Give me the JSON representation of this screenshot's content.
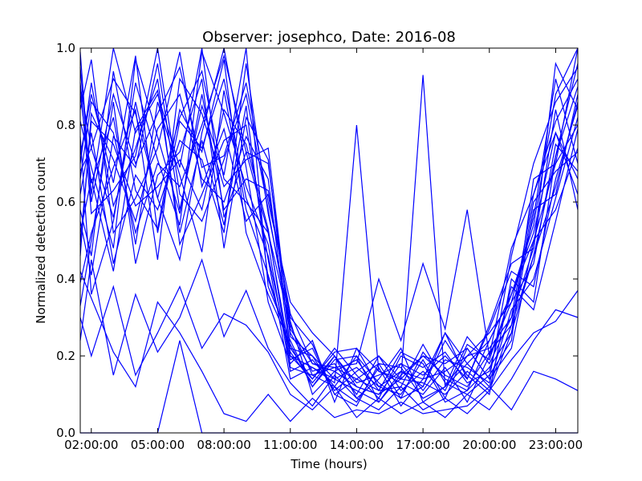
{
  "chart_data": {
    "type": "line",
    "title": "Observer: josephco, Date: 2016-08",
    "xlabel": "Time (hours)",
    "ylabel": "Normalized detection count",
    "x_ticks": [
      "02:00:00",
      "05:00:00",
      "08:00:00",
      "11:00:00",
      "14:00:00",
      "17:00:00",
      "20:00:00",
      "23:00:00"
    ],
    "x_tick_hours": [
      2,
      5,
      8,
      11,
      14,
      17,
      20,
      23
    ],
    "y_ticks": [
      "0.0",
      "0.2",
      "0.4",
      "0.6",
      "0.8",
      "1.0"
    ],
    "y_tick_values": [
      0.0,
      0.2,
      0.4,
      0.6,
      0.8,
      1.0
    ],
    "xlim": [
      1.5,
      24
    ],
    "ylim": [
      0.0,
      1.0
    ],
    "grid": false,
    "line_color": "#0000ff",
    "x_hours": [
      1.5,
      2,
      3,
      4,
      5,
      6,
      7,
      8,
      9,
      10,
      11,
      12,
      13,
      14,
      15,
      16,
      17,
      18,
      19,
      20,
      21,
      22,
      23,
      24
    ],
    "series": [
      {
        "values": [
          0.95,
          0.62,
          1.0,
          0.78,
          0.88,
          0.69,
          1.0,
          0.56,
          0.73,
          0.52,
          0.28,
          0.15,
          0.12,
          0.2,
          0.08,
          0.16,
          0.12,
          0.26,
          0.18,
          0.12,
          0.28,
          0.46,
          0.72,
          0.96
        ]
      },
      {
        "values": [
          0.72,
          0.88,
          0.65,
          0.98,
          0.52,
          0.81,
          0.74,
          0.92,
          0.61,
          0.46,
          0.19,
          0.22,
          0.1,
          0.14,
          0.18,
          0.09,
          0.21,
          0.14,
          0.11,
          0.24,
          0.36,
          0.54,
          0.88,
          1.0
        ]
      },
      {
        "values": [
          0.55,
          0.41,
          0.77,
          0.69,
          0.96,
          0.58,
          0.85,
          0.67,
          1.0,
          0.38,
          0.24,
          0.12,
          0.2,
          0.09,
          0.14,
          0.22,
          0.08,
          0.12,
          0.25,
          0.18,
          0.3,
          0.62,
          0.81,
          0.92
        ]
      },
      {
        "values": [
          0.84,
          0.97,
          0.52,
          0.61,
          0.74,
          0.99,
          0.64,
          0.79,
          0.55,
          0.62,
          0.31,
          0.18,
          0.16,
          0.12,
          0.1,
          0.18,
          0.15,
          0.2,
          0.14,
          0.27,
          0.42,
          0.38,
          0.66,
          0.85
        ]
      },
      {
        "values": [
          0.33,
          0.5,
          0.86,
          0.44,
          0.67,
          0.73,
          0.92,
          0.48,
          0.82,
          0.71,
          0.22,
          0.2,
          0.14,
          0.17,
          0.12,
          0.1,
          0.19,
          0.09,
          0.22,
          0.14,
          0.22,
          0.5,
          0.58,
          0.74
        ]
      },
      {
        "values": [
          0.68,
          0.74,
          0.92,
          0.83,
          0.61,
          0.45,
          0.78,
          1.0,
          0.69,
          0.34,
          0.18,
          0.24,
          0.08,
          0.22,
          0.16,
          0.13,
          0.1,
          0.17,
          0.08,
          0.2,
          0.34,
          0.44,
          0.75,
          0.68
        ]
      },
      {
        "values": [
          0.91,
          0.57,
          0.63,
          0.72,
          1.0,
          0.62,
          0.55,
          0.71,
          0.88,
          0.58,
          0.26,
          0.16,
          0.18,
          0.1,
          0.2,
          0.14,
          0.13,
          0.1,
          0.16,
          0.11,
          0.26,
          0.58,
          0.62,
          0.88
        ]
      },
      {
        "values": [
          0.46,
          0.83,
          0.71,
          0.55,
          0.79,
          0.88,
          0.66,
          0.6,
          0.77,
          0.66,
          0.2,
          0.14,
          0.22,
          0.15,
          0.09,
          0.2,
          0.17,
          0.21,
          0.13,
          0.16,
          0.38,
          0.32,
          0.55,
          0.79
        ]
      },
      {
        "values": [
          0.77,
          0.36,
          0.55,
          0.91,
          0.71,
          0.54,
          0.99,
          0.83,
          0.64,
          0.49,
          0.16,
          0.19,
          0.12,
          0.08,
          0.17,
          0.07,
          0.14,
          0.16,
          0.2,
          0.22,
          0.3,
          0.48,
          0.84,
          0.58
        ]
      },
      {
        "values": [
          0.62,
          0.78,
          0.44,
          0.67,
          0.58,
          0.76,
          0.71,
          0.52,
          0.96,
          0.57,
          0.29,
          0.1,
          0.16,
          0.19,
          0.11,
          0.12,
          0.23,
          0.13,
          0.1,
          0.15,
          0.24,
          0.66,
          0.7,
          1.0
        ]
      },
      {
        "values": [
          0.88,
          0.65,
          0.82,
          0.49,
          0.86,
          0.67,
          0.47,
          0.89,
          0.58,
          0.41,
          0.21,
          0.13,
          0.2,
          0.13,
          0.15,
          0.18,
          0.11,
          0.19,
          0.17,
          0.13,
          0.32,
          0.4,
          0.61,
          0.82
        ]
      },
      {
        "values": [
          0.39,
          0.52,
          0.69,
          0.84,
          0.45,
          0.92,
          0.83,
          0.64,
          0.71,
          0.74,
          0.25,
          0.2,
          0.11,
          0.16,
          0.2,
          0.11,
          0.16,
          0.11,
          0.23,
          0.19,
          0.36,
          0.52,
          0.78,
          0.62
        ]
      },
      {
        "values": [
          0.7,
          0.91,
          0.59,
          0.74,
          0.92,
          0.49,
          0.62,
          0.76,
          0.8,
          0.45,
          0.14,
          0.17,
          0.14,
          0.11,
          0.08,
          0.15,
          0.2,
          0.15,
          0.12,
          0.21,
          0.28,
          0.6,
          0.68,
          0.73
        ]
      },
      {
        "values": [
          0.58,
          0.46,
          0.94,
          0.63,
          0.53,
          0.84,
          0.73,
          0.97,
          0.52,
          0.36,
          0.23,
          0.12,
          0.19,
          0.2,
          0.13,
          0.09,
          0.12,
          0.24,
          0.15,
          0.1,
          0.4,
          0.34,
          0.72,
          0.9
        ]
      },
      {
        "values": [
          0.81,
          0.69,
          0.48,
          0.97,
          0.77,
          0.57,
          0.88,
          0.58,
          0.66,
          0.63,
          0.3,
          0.23,
          0.1,
          0.07,
          0.18,
          0.17,
          0.09,
          0.12,
          0.2,
          0.26,
          0.34,
          0.56,
          0.92,
          0.7
        ]
      },
      {
        "values": [
          0.49,
          0.81,
          0.75,
          0.59,
          0.64,
          0.71,
          0.58,
          0.84,
          0.75,
          0.53,
          0.17,
          0.15,
          0.17,
          0.14,
          0.11,
          0.21,
          0.18,
          0.08,
          0.11,
          0.17,
          0.26,
          0.46,
          0.64,
          0.86
        ]
      },
      {
        "values": [
          0.99,
          0.6,
          0.88,
          0.7,
          0.83,
          0.95,
          0.69,
          0.72,
          0.91,
          0.6,
          0.34,
          0.26,
          0.2,
          0.12,
          0.1,
          0.14,
          0.2,
          0.18,
          0.22,
          0.14,
          0.46,
          0.7,
          0.86,
          0.95
        ]
      },
      {
        "values": [
          0.3,
          0.2,
          0.38,
          0.15,
          0.26,
          0.38,
          0.22,
          0.31,
          0.28,
          0.21,
          0.1,
          0.06,
          0.12,
          0.04,
          0.09,
          0.05,
          0.08,
          0.04,
          0.1,
          0.06,
          0.14,
          0.24,
          0.32,
          0.3
        ]
      },
      {
        "values": [
          0.0,
          0.0,
          0.0,
          0.0,
          0.0,
          0.24,
          0.0,
          0.0,
          0.0,
          0.0,
          0.0,
          0.0,
          0.0,
          0.0,
          0.0,
          0.0,
          0.0,
          0.0,
          0.0,
          0.0,
          0.0,
          0.0,
          0.0,
          0.0
        ]
      },
      {
        "values": [
          0.42,
          0.35,
          0.21,
          0.12,
          0.34,
          0.26,
          0.16,
          0.05,
          0.03,
          0.1,
          0.03,
          0.09,
          0.04,
          0.06,
          0.05,
          0.08,
          0.05,
          0.06,
          0.07,
          0.12,
          0.06,
          0.16,
          0.14,
          0.11
        ]
      },
      {
        "values": [
          0.9,
          0.74,
          0.56,
          0.86,
          0.61,
          0.82,
          0.94,
          0.66,
          0.6,
          0.52,
          0.2,
          0.17,
          0.13,
          0.8,
          0.16,
          0.14,
          0.93,
          0.12,
          0.18,
          0.24,
          0.36,
          0.5,
          0.7,
          0.8
        ]
      },
      {
        "values": [
          0.24,
          0.45,
          0.15,
          0.36,
          0.21,
          0.3,
          0.45,
          0.25,
          0.37,
          0.22,
          0.13,
          0.07,
          0.15,
          0.09,
          0.06,
          0.12,
          0.06,
          0.09,
          0.05,
          0.11,
          0.19,
          0.26,
          0.29,
          0.37
        ]
      },
      {
        "values": [
          0.66,
          0.86,
          0.78,
          0.52,
          0.7,
          0.64,
          0.8,
          0.98,
          0.73,
          0.7,
          0.27,
          0.18,
          0.17,
          0.18,
          0.4,
          0.24,
          0.44,
          0.27,
          0.58,
          0.2,
          0.48,
          0.62,
          0.78,
          0.66
        ]
      },
      {
        "values": [
          0.52,
          0.66,
          0.42,
          0.79,
          0.89,
          0.52,
          0.76,
          0.54,
          0.85,
          0.4,
          0.22,
          0.14,
          0.21,
          0.22,
          0.12,
          0.16,
          0.14,
          0.26,
          0.14,
          0.28,
          0.44,
          0.48,
          0.96,
          0.84
        ]
      }
    ]
  }
}
